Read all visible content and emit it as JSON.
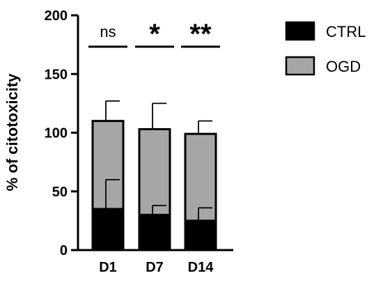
{
  "colors": {
    "ctrl": "#000000",
    "ogd": "#a6a6a6",
    "axis": "#000000"
  },
  "chart_data": {
    "type": "bar",
    "stacked": true,
    "categories": [
      "D1",
      "D7",
      "D14"
    ],
    "series": [
      {
        "name": "CTRL",
        "values": [
          35,
          30,
          25
        ],
        "error": [
          25,
          8,
          11
        ],
        "color": "#000000"
      },
      {
        "name": "OGD",
        "values": [
          75,
          73,
          74
        ],
        "error": [
          17,
          22,
          11
        ],
        "color": "#a6a6a6"
      }
    ],
    "ylabel": "% of citotoxicity",
    "xlabel": "",
    "ylim": [
      0,
      200
    ],
    "yticks": [
      0,
      50,
      100,
      150,
      200
    ],
    "significance": [
      "ns",
      "*",
      "**"
    ],
    "legend": "right",
    "grid": false
  }
}
